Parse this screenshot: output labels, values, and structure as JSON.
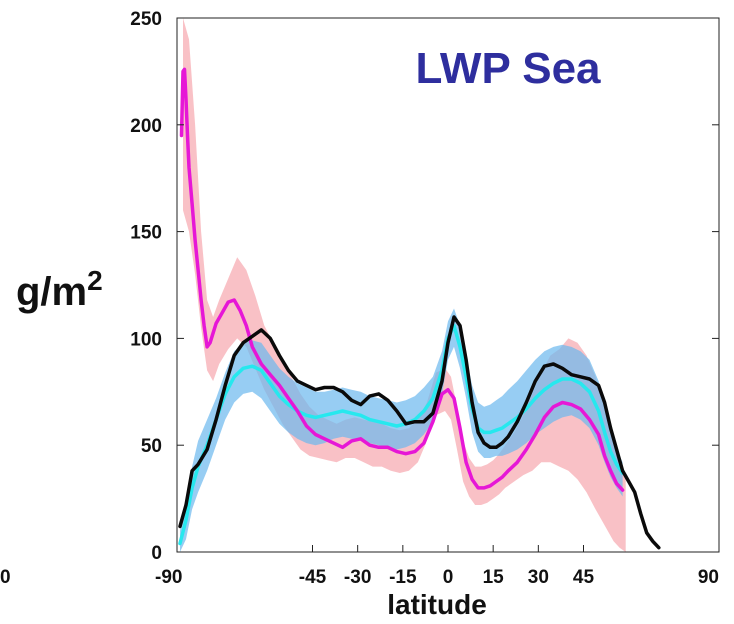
{
  "chart_data": {
    "type": "line",
    "title": "LWP Sea",
    "xlabel": "latitude",
    "ylabel": "g/m",
    "ylabel_superscript": "2",
    "xlim": [
      -90,
      90
    ],
    "ylim": [
      0,
      250
    ],
    "x_ticks": [
      -90,
      -45,
      -30,
      -15,
      0,
      15,
      30,
      45,
      90
    ],
    "y_ticks": [
      0,
      50,
      100,
      150,
      200,
      250
    ],
    "left_edge_tick": "0",
    "colors": {
      "black": "#0a0a0a",
      "magenta": "#e617d6",
      "cyan": "#26e8ee",
      "pink_band": "#f7a6ae",
      "blue_band": "#6bb8ee",
      "title": "#2e2e9e"
    },
    "series": [
      {
        "color": "#0a0a0a",
        "x": [
          -89,
          -87,
          -85,
          -83,
          -80,
          -77,
          -74,
          -71,
          -68,
          -65,
          -62,
          -59,
          -56,
          -53,
          -50,
          -47,
          -44,
          -41,
          -38,
          -35,
          -32,
          -29,
          -26,
          -23,
          -20,
          -17,
          -14,
          -11,
          -8,
          -5,
          -2,
          0,
          2,
          4,
          6,
          8,
          10,
          12,
          14,
          16,
          18,
          20,
          23,
          26,
          29,
          32,
          35,
          38,
          41,
          44,
          47,
          50,
          52,
          54,
          56,
          58,
          60,
          62,
          64,
          66,
          68,
          70
        ],
        "y": [
          12,
          22,
          38,
          41,
          48,
          62,
          78,
          92,
          98,
          101,
          104,
          100,
          92,
          85,
          80,
          78,
          76,
          77,
          77,
          75,
          71,
          69,
          73,
          74,
          71,
          66,
          60,
          61,
          61,
          65,
          80,
          98,
          110,
          106,
          90,
          70,
          56,
          51,
          49,
          49,
          51,
          54,
          61,
          70,
          80,
          87,
          88,
          86,
          83,
          82,
          81,
          78,
          70,
          58,
          48,
          38,
          33,
          28,
          18,
          9,
          5,
          2
        ]
      },
      {
        "color": "#e617d6",
        "x": [
          -88.5,
          -88,
          -87.5,
          -87,
          -86.5,
          -86,
          -85,
          -84,
          -83,
          -82,
          -81,
          -80,
          -79,
          -77,
          -75,
          -73,
          -71,
          -69,
          -67,
          -65,
          -62,
          -59,
          -56,
          -53,
          -50,
          -47,
          -44,
          -41,
          -38,
          -35,
          -32,
          -29,
          -26,
          -23,
          -20,
          -17,
          -14,
          -11,
          -8,
          -5,
          -2,
          0,
          2,
          4,
          6,
          8,
          10,
          12,
          14,
          16,
          18,
          20,
          23,
          26,
          29,
          32,
          35,
          38,
          41,
          44,
          47,
          50,
          52,
          54,
          56,
          58
        ],
        "y": [
          195,
          225,
          226,
          212,
          195,
          180,
          163,
          146,
          132,
          118,
          106,
          96,
          98,
          107,
          112,
          117,
          118,
          113,
          106,
          96,
          88,
          83,
          78,
          72,
          66,
          59,
          55,
          53,
          51,
          49,
          52,
          53,
          50,
          49,
          49,
          47,
          46,
          47,
          51,
          61,
          74,
          76,
          72,
          58,
          42,
          34,
          30,
          30,
          31,
          33,
          35,
          38,
          42,
          48,
          55,
          63,
          68,
          70,
          69,
          67,
          62,
          55,
          45,
          38,
          32,
          29
        ]
      },
      {
        "color": "#26e8ee",
        "x": [
          -89,
          -87,
          -85,
          -83,
          -80,
          -77,
          -74,
          -71,
          -68,
          -65,
          -62,
          -59,
          -56,
          -53,
          -50,
          -47,
          -44,
          -41,
          -38,
          -35,
          -32,
          -29,
          -26,
          -23,
          -20,
          -17,
          -14,
          -11,
          -8,
          -5,
          -2,
          0,
          2,
          4,
          6,
          8,
          10,
          12,
          14,
          16,
          18,
          20,
          23,
          26,
          29,
          32,
          35,
          38,
          41,
          44,
          47,
          50,
          52,
          54,
          56,
          58
        ],
        "y": [
          4,
          15,
          30,
          40,
          50,
          62,
          74,
          82,
          86,
          87,
          85,
          79,
          73,
          69,
          66,
          64,
          63,
          64,
          65,
          66,
          65,
          64,
          62,
          61,
          60,
          59,
          60,
          62,
          66,
          72,
          85,
          100,
          106,
          96,
          82,
          67,
          58,
          56,
          56,
          57,
          58,
          60,
          63,
          67,
          72,
          76,
          79,
          81,
          81,
          79,
          75,
          66,
          56,
          47,
          41,
          37
        ]
      }
    ],
    "bands": [
      {
        "color": "#f7a6ae",
        "x": [
          -88,
          -86,
          -84,
          -82,
          -80,
          -78,
          -76,
          -73,
          -70,
          -67,
          -64,
          -61,
          -58,
          -55,
          -52,
          -49,
          -46,
          -43,
          -40,
          -37,
          -34,
          -31,
          -28,
          -25,
          -22,
          -19,
          -16,
          -13,
          -10,
          -7,
          -4,
          -1,
          1,
          3,
          5,
          7,
          9,
          11,
          13,
          15,
          17,
          19,
          22,
          25,
          28,
          31,
          34,
          37,
          40,
          43,
          46,
          49,
          51,
          53,
          55,
          57,
          59
        ],
        "upper": [
          250,
          240,
          200,
          150,
          118,
          110,
          118,
          128,
          138,
          132,
          120,
          106,
          98,
          90,
          82,
          74,
          68,
          64,
          62,
          60,
          62,
          63,
          62,
          61,
          60,
          58,
          57,
          58,
          62,
          70,
          84,
          86,
          82,
          68,
          52,
          44,
          40,
          40,
          41,
          43,
          46,
          50,
          56,
          64,
          74,
          84,
          92,
          95,
          100,
          98,
          92,
          82,
          72,
          62,
          52,
          44,
          35
        ],
        "lower": [
          160,
          150,
          130,
          105,
          85,
          80,
          88,
          95,
          100,
          96,
          86,
          76,
          68,
          60,
          54,
          48,
          45,
          44,
          43,
          42,
          44,
          44,
          42,
          40,
          40,
          38,
          37,
          38,
          42,
          52,
          64,
          66,
          62,
          48,
          33,
          26,
          22,
          22,
          23,
          25,
          27,
          30,
          33,
          36,
          38,
          42,
          42,
          40,
          38,
          34,
          28,
          20,
          15,
          10,
          5,
          2,
          0
        ]
      },
      {
        "color": "#6bb8ee",
        "x": [
          -89,
          -87,
          -85,
          -83,
          -80,
          -77,
          -74,
          -71,
          -68,
          -65,
          -62,
          -59,
          -56,
          -53,
          -50,
          -47,
          -44,
          -41,
          -38,
          -35,
          -32,
          -29,
          -26,
          -23,
          -20,
          -17,
          -14,
          -11,
          -8,
          -5,
          -2,
          0,
          2,
          4,
          6,
          8,
          10,
          12,
          14,
          16,
          18,
          20,
          23,
          26,
          29,
          32,
          35,
          38,
          41,
          44,
          47,
          50,
          52,
          54,
          56,
          58
        ],
        "upper": [
          10,
          24,
          40,
          52,
          62,
          72,
          84,
          94,
          98,
          99,
          98,
          92,
          86,
          82,
          79,
          77,
          75,
          75,
          76,
          77,
          76,
          75,
          73,
          72,
          71,
          70,
          71,
          73,
          77,
          82,
          94,
          108,
          114,
          106,
          92,
          78,
          70,
          68,
          69,
          71,
          73,
          76,
          80,
          85,
          90,
          94,
          96,
          97,
          96,
          94,
          90,
          80,
          68,
          56,
          48,
          42
        ],
        "lower": [
          0,
          6,
          20,
          28,
          38,
          50,
          62,
          70,
          74,
          75,
          72,
          66,
          60,
          56,
          53,
          51,
          50,
          51,
          53,
          54,
          53,
          52,
          51,
          50,
          49,
          48,
          49,
          51,
          55,
          61,
          74,
          90,
          96,
          86,
          72,
          56,
          47,
          44,
          44,
          45,
          45,
          46,
          48,
          51,
          55,
          58,
          61,
          63,
          64,
          62,
          58,
          50,
          42,
          35,
          30,
          26
        ]
      }
    ]
  }
}
